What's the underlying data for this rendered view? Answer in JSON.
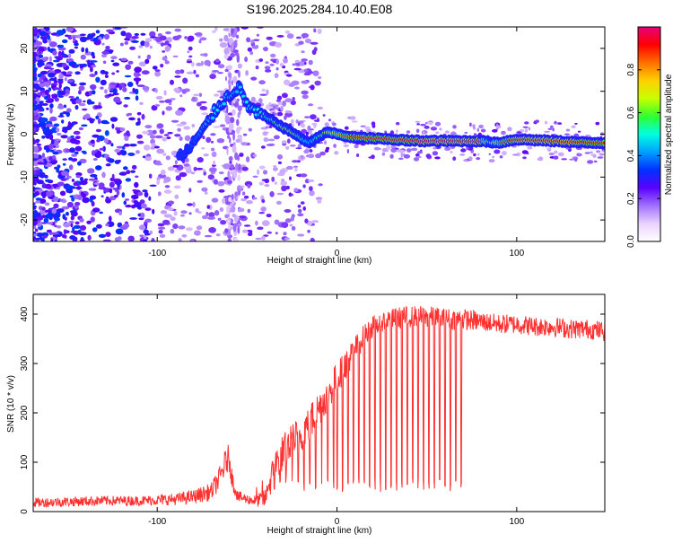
{
  "chart_data": [
    {
      "type": "heatmap",
      "title": "S196.2025.284.10.40.E08",
      "xlabel": "Height of straight line (km)",
      "ylabel": "Frequency (Hz)",
      "xlim": [
        -169,
        149
      ],
      "ylim": [
        -25,
        25
      ],
      "xticks": [
        -100,
        0,
        100
      ],
      "yticks": [
        -20,
        -10,
        0,
        10,
        20
      ],
      "grid": false,
      "colorbar": {
        "label": "Normalized spectral amplitude",
        "range": [
          0,
          1
        ],
        "ticks": [
          "0.0",
          "0.2",
          "0.4",
          "0.6",
          "0.8"
        ],
        "colors": [
          "#ffffff",
          "#ead3ff",
          "#a070ff",
          "#5a00ff",
          "#0030ff",
          "#00a0ff",
          "#00ffe0",
          "#30ff30",
          "#c8ff00",
          "#ffd000",
          "#ff7000",
          "#ff0000",
          "#e8007a"
        ]
      },
      "ridge": {
        "x": [
          -85,
          -80,
          -75,
          -70,
          -65,
          -60,
          -55,
          -50,
          -45,
          -40,
          -35,
          -30,
          -25,
          -20,
          -15,
          -10,
          -5,
          0,
          5,
          10,
          20,
          30,
          40,
          50,
          60,
          70,
          80,
          85,
          90,
          100,
          110,
          120,
          130,
          140,
          149
        ],
        "freq": [
          -5,
          -2,
          0.5,
          4,
          7,
          9,
          11,
          7,
          5,
          4,
          3,
          1.5,
          0.5,
          -1,
          -2,
          -0.5,
          0.5,
          0,
          -0.5,
          -0.8,
          -1,
          -1.2,
          -1.5,
          -1.6,
          -1.6,
          -1.6,
          -1.6,
          -1.8,
          -2,
          -1.2,
          -1.4,
          -1.6,
          -1.8,
          -2,
          -2
        ],
        "amplitude": [
          0.3,
          0.35,
          0.4,
          0.45,
          0.5,
          0.45,
          0.45,
          0.5,
          0.5,
          0.55,
          0.6,
          0.65,
          0.65,
          0.55,
          0.45,
          0.55,
          0.7,
          0.8,
          0.85,
          0.9,
          0.9,
          0.9,
          0.9,
          0.95,
          0.95,
          0.95,
          0.95,
          0.6,
          0.85,
          0.95,
          0.95,
          0.95,
          0.95,
          0.9,
          0.9
        ]
      }
    },
    {
      "type": "line",
      "title": "",
      "xlabel": "Height of straight line (km)",
      "ylabel": "SNR (10 * v/v)",
      "xlim": [
        -169,
        149
      ],
      "ylim": [
        0,
        440
      ],
      "xticks": [
        -100,
        0,
        100
      ],
      "yticks": [
        0,
        100,
        200,
        300,
        400
      ],
      "grid": false,
      "series": [
        {
          "name": "SNR",
          "color": "#ff3030",
          "x": [
            -169,
            -150,
            -130,
            -110,
            -90,
            -80,
            -70,
            -65,
            -62,
            -60,
            -58,
            -55,
            -50,
            -45,
            -40,
            -37,
            -35,
            -30,
            -25,
            -20,
            -15,
            -10,
            -5,
            0,
            5,
            10,
            15,
            20,
            25,
            30,
            40,
            50,
            60,
            70,
            80,
            90,
            100,
            110,
            120,
            130,
            140,
            149
          ],
          "y": [
            18,
            20,
            22,
            22,
            25,
            30,
            40,
            70,
            100,
            110,
            60,
            30,
            25,
            22,
            25,
            60,
            90,
            120,
            140,
            160,
            180,
            210,
            240,
            270,
            300,
            330,
            355,
            375,
            385,
            390,
            395,
            395,
            390,
            390,
            385,
            380,
            380,
            375,
            375,
            370,
            370,
            365
          ],
          "noise": [
            10,
            10,
            10,
            10,
            12,
            14,
            18,
            24,
            28,
            28,
            20,
            12,
            10,
            12,
            20,
            28,
            34,
            38,
            40,
            40,
            40,
            38,
            36,
            34,
            30,
            26,
            24,
            22,
            22,
            22,
            22,
            22,
            22,
            22,
            20,
            20,
            20,
            20,
            20,
            20,
            20,
            20
          ],
          "dropouts": {
            "start": -45,
            "end": 70,
            "depth": 40
          }
        }
      ]
    }
  ]
}
